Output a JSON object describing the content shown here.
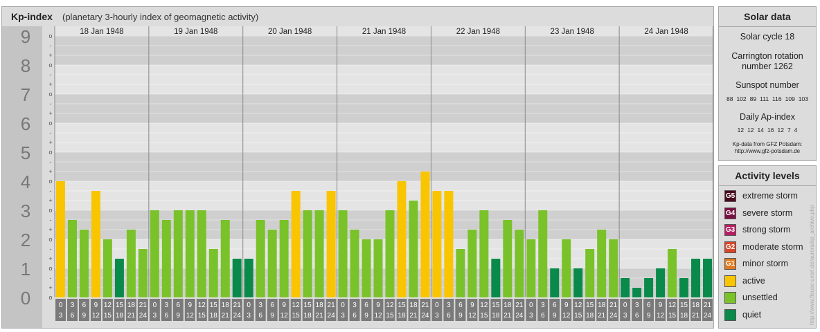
{
  "header": {
    "title": "Kp-index",
    "subtitle": "(planetary 3-hourly index of geomagnetic activity)"
  },
  "solar": {
    "title": "Solar data",
    "cycle": "Solar cycle 18",
    "carrington": "Carrington rotation number 1262",
    "sunspot_title": "Sunspot number",
    "sunspot_values": [
      "88",
      "102",
      "89",
      "111",
      "116",
      "109",
      "103"
    ],
    "ap_title": "Daily Ap-index",
    "ap_values": [
      "12",
      "12",
      "14",
      "16",
      "12",
      "7",
      "4"
    ],
    "credit_line1": "Kp-data from GFZ Potsdam:",
    "credit_line2": "http://www.gfz-potsdam.de"
  },
  "activity": {
    "title": "Activity levels",
    "levels": [
      {
        "badge": "G5",
        "label": "extreme storm",
        "color": "#4a0a1e"
      },
      {
        "badge": "G4",
        "label": "severe storm",
        "color": "#7a1040"
      },
      {
        "badge": "G3",
        "label": "strong storm",
        "color": "#b81e62"
      },
      {
        "badge": "G2",
        "label": "moderate storm",
        "color": "#d9462a"
      },
      {
        "badge": "G1",
        "label": "minor storm",
        "color": "#e07a20"
      },
      {
        "badge": "",
        "label": "active",
        "color": "#f9c400"
      },
      {
        "badge": "",
        "label": "unsettled",
        "color": "#7ac22a"
      },
      {
        "badge": "",
        "label": "quiet",
        "color": "#0a8a4a"
      }
    ]
  },
  "watermark": "http://www.fleuse-uverl.de/aurora/kp_archive.php",
  "chart_data": {
    "type": "bar",
    "title": "Kp-index",
    "ylim": [
      0,
      9
    ],
    "y_ticks": [
      "0",
      "1",
      "2",
      "3",
      "4",
      "5",
      "6",
      "7",
      "8",
      "9"
    ],
    "sub_ticks": [
      "o",
      "+",
      "-"
    ],
    "days": [
      "18 Jan 1948",
      "19 Jan 1948",
      "20 Jan 1948",
      "21 Jan 1948",
      "22 Jan 1948",
      "23 Jan 1948",
      "24 Jan 1948"
    ],
    "interval_top": [
      "0",
      "3",
      "6",
      "9",
      "12",
      "15",
      "18",
      "21"
    ],
    "interval_bottom": [
      "3",
      "6",
      "9",
      "12",
      "15",
      "18",
      "21",
      "24"
    ],
    "values": [
      4.0,
      2.667,
      2.333,
      3.667,
      2.0,
      1.333,
      2.333,
      1.667,
      3.0,
      2.667,
      3.0,
      3.0,
      3.0,
      1.667,
      2.667,
      1.333,
      1.333,
      2.667,
      2.333,
      2.667,
      3.667,
      3.0,
      3.0,
      3.667,
      3.0,
      2.333,
      2.0,
      2.0,
      3.0,
      4.0,
      3.333,
      4.333,
      3.667,
      3.667,
      1.667,
      2.333,
      3.0,
      1.333,
      2.667,
      2.333,
      2.0,
      3.0,
      1.0,
      2.0,
      1.0,
      1.667,
      2.333,
      2.0,
      0.667,
      0.333,
      0.667,
      1.0,
      1.667,
      0.667,
      1.333,
      1.333
    ],
    "colors": {
      "quiet": "#0a8a4a",
      "unsettled": "#7ac22a",
      "active": "#f9c400"
    }
  }
}
